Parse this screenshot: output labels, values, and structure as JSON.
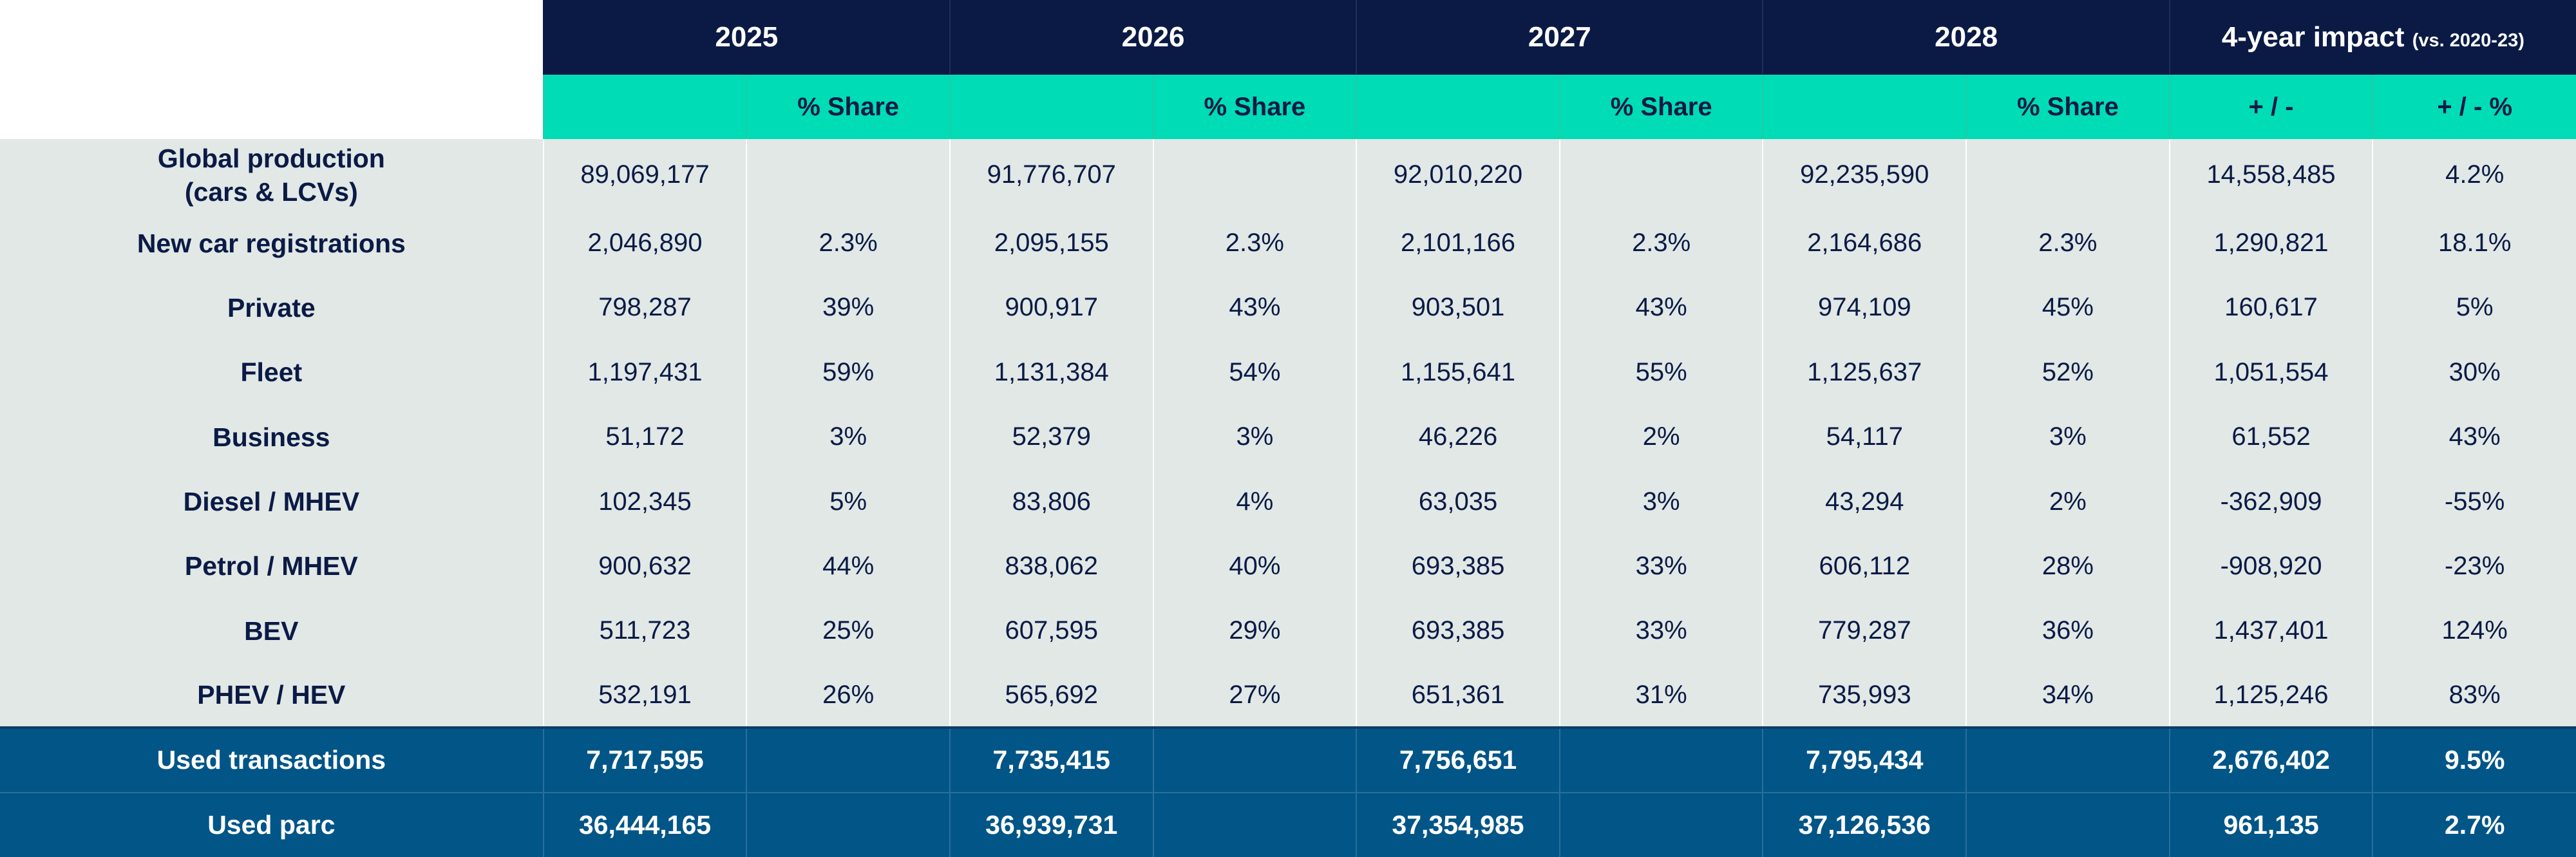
{
  "header": {
    "years": [
      "2025",
      "2026",
      "2027",
      "2028"
    ],
    "impact": {
      "title": "4-year impact",
      "note": "(vs. 2020-23)"
    },
    "share_label": "% Share",
    "impact_cols": [
      "+ / -",
      "+ / - %"
    ]
  },
  "rows": [
    {
      "label_lines": [
        "Global production",
        "(cars & LCVs)"
      ],
      "cells": [
        "89,069,177",
        "",
        "91,776,707",
        "",
        "92,010,220",
        "",
        "92,235,590",
        "",
        "14,558,485",
        "4.2%"
      ]
    },
    {
      "label_lines": [
        "New car registrations"
      ],
      "cells": [
        "2,046,890",
        "2.3%",
        "2,095,155",
        "2.3%",
        "2,101,166",
        "2.3%",
        "2,164,686",
        "2.3%",
        "1,290,821",
        "18.1%"
      ]
    },
    {
      "label_lines": [
        "Private"
      ],
      "cells": [
        "798,287",
        "39%",
        "900,917",
        "43%",
        "903,501",
        "43%",
        "974,109",
        "45%",
        "160,617",
        "5%"
      ]
    },
    {
      "label_lines": [
        "Fleet"
      ],
      "cells": [
        "1,197,431",
        "59%",
        "1,131,384",
        "54%",
        "1,155,641",
        "55%",
        "1,125,637",
        "52%",
        "1,051,554",
        "30%"
      ]
    },
    {
      "label_lines": [
        "Business"
      ],
      "cells": [
        "51,172",
        "3%",
        "52,379",
        "3%",
        "46,226",
        "2%",
        "54,117",
        "3%",
        "61,552",
        "43%"
      ]
    },
    {
      "label_lines": [
        "Diesel / MHEV"
      ],
      "cells": [
        "102,345",
        "5%",
        "83,806",
        "4%",
        "63,035",
        "3%",
        "43,294",
        "2%",
        "-362,909",
        "-55%"
      ]
    },
    {
      "label_lines": [
        "Petrol / MHEV"
      ],
      "cells": [
        "900,632",
        "44%",
        "838,062",
        "40%",
        "693,385",
        "33%",
        "606,112",
        "28%",
        "-908,920",
        "-23%"
      ]
    },
    {
      "label_lines": [
        "BEV"
      ],
      "cells": [
        "511,723",
        "25%",
        "607,595",
        "29%",
        "693,385",
        "33%",
        "779,287",
        "36%",
        "1,437,401",
        "124%"
      ]
    },
    {
      "label_lines": [
        "PHEV / HEV"
      ],
      "cells": [
        "532,191",
        "26%",
        "565,692",
        "27%",
        "651,361",
        "31%",
        "735,993",
        "34%",
        "1,125,246",
        "83%"
      ]
    }
  ],
  "used_rows": [
    {
      "label": "Used transactions",
      "cells": [
        "7,717,595",
        "",
        "7,735,415",
        "",
        "7,756,651",
        "",
        "7,795,434",
        "",
        "2,676,402",
        "9.5%"
      ]
    },
    {
      "label": "Used parc",
      "cells": [
        "36,444,165",
        "",
        "36,939,731",
        "",
        "37,354,985",
        "",
        "37,126,536",
        "",
        "961,135",
        "2.7%"
      ]
    }
  ],
  "colors": {
    "header_navy": "#0b1a45",
    "subheader_teal": "#00dcb5",
    "body_grey": "#e1e8e6",
    "used_blue": "#025587"
  }
}
